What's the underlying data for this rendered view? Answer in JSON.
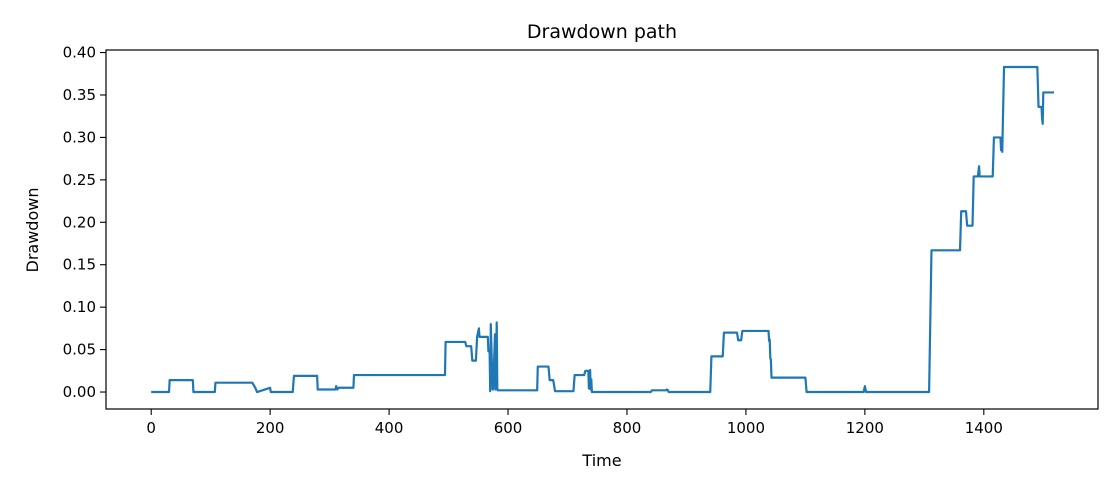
{
  "chart_data": {
    "type": "line",
    "title": "Drawdown path",
    "xlabel": "Time",
    "ylabel": "Drawdown",
    "xlim": [
      -76,
      1592
    ],
    "ylim": [
      -0.02,
      0.403
    ],
    "x_ticks": [
      0,
      200,
      400,
      600,
      800,
      1000,
      1200,
      1400
    ],
    "x_tick_labels": [
      "0",
      "200",
      "400",
      "600",
      "800",
      "1000",
      "1200",
      "1400"
    ],
    "y_ticks": [
      0.0,
      0.05,
      0.1,
      0.15,
      0.2,
      0.25,
      0.3,
      0.35,
      0.4
    ],
    "y_tick_labels": [
      "0.00",
      "0.05",
      "0.10",
      "0.15",
      "0.20",
      "0.25",
      "0.30",
      "0.35",
      "0.40"
    ],
    "grid": false,
    "legend": "none",
    "series": [
      {
        "color": "#1f77b4",
        "x": [
          0,
          30,
          31,
          70,
          71,
          107,
          108,
          170,
          175,
          178,
          200,
          201,
          238,
          240,
          279,
          280,
          310,
          311,
          313,
          315,
          340,
          341,
          494,
          495,
          528,
          530,
          538,
          540,
          546,
          548,
          551,
          552,
          566,
          567,
          569,
          570,
          571,
          574,
          575,
          578,
          579,
          581,
          582,
          583,
          584,
          649,
          650,
          668,
          670,
          676,
          679,
          710,
          712,
          728,
          730,
          735,
          736,
          738,
          739,
          740,
          741,
          840,
          842,
          866,
          867,
          869,
          870,
          940,
          942,
          961,
          963,
          985,
          987,
          992,
          994,
          1038,
          1039,
          1040,
          1041,
          1042,
          1043,
          1100,
          1102,
          1196,
          1198,
          1200,
          1202,
          1308,
          1312,
          1313,
          1360,
          1362,
          1370,
          1372,
          1381,
          1383,
          1390,
          1392,
          1393,
          1394,
          1415,
          1417,
          1428,
          1429,
          1430,
          1431,
          1434,
          1436,
          1490,
          1492,
          1497,
          1498,
          1499,
          1500,
          1501,
          1518
        ],
        "y": [
          0,
          0,
          0.014,
          0.014,
          0,
          0,
          0.011,
          0.011,
          0.005,
          0,
          0.005,
          0,
          0,
          0.019,
          0.019,
          0.003,
          0.003,
          0.007,
          0.003,
          0.005,
          0.005,
          0.02,
          0.02,
          0.059,
          0.059,
          0.054,
          0.054,
          0.037,
          0.037,
          0.065,
          0.075,
          0.065,
          0.065,
          0.048,
          0.048,
          0.001,
          0.08,
          0.003,
          0.003,
          0.068,
          0.003,
          0.082,
          0.003,
          0.002,
          0.002,
          0.002,
          0.03,
          0.03,
          0.014,
          0.014,
          0.001,
          0.001,
          0.02,
          0.02,
          0.025,
          0.025,
          0.004,
          0.026,
          0.003,
          0.015,
          0,
          0,
          0.002,
          0.002,
          0.003,
          0.002,
          0,
          0,
          0.042,
          0.042,
          0.07,
          0.07,
          0.061,
          0.061,
          0.072,
          0.072,
          0.06,
          0.062,
          0.04,
          0.038,
          0.017,
          0.017,
          0,
          0,
          0,
          0.007,
          0,
          0,
          0.167,
          0.167,
          0.167,
          0.213,
          0.213,
          0.196,
          0.196,
          0.254,
          0.254,
          0.266,
          0.254,
          0.254,
          0.254,
          0.3,
          0.3,
          0.285,
          0.291,
          0.283,
          0.383,
          0.383,
          0.383,
          0.336,
          0.336,
          0.322,
          0.316,
          0.353,
          0.353,
          0.353
        ]
      }
    ]
  }
}
